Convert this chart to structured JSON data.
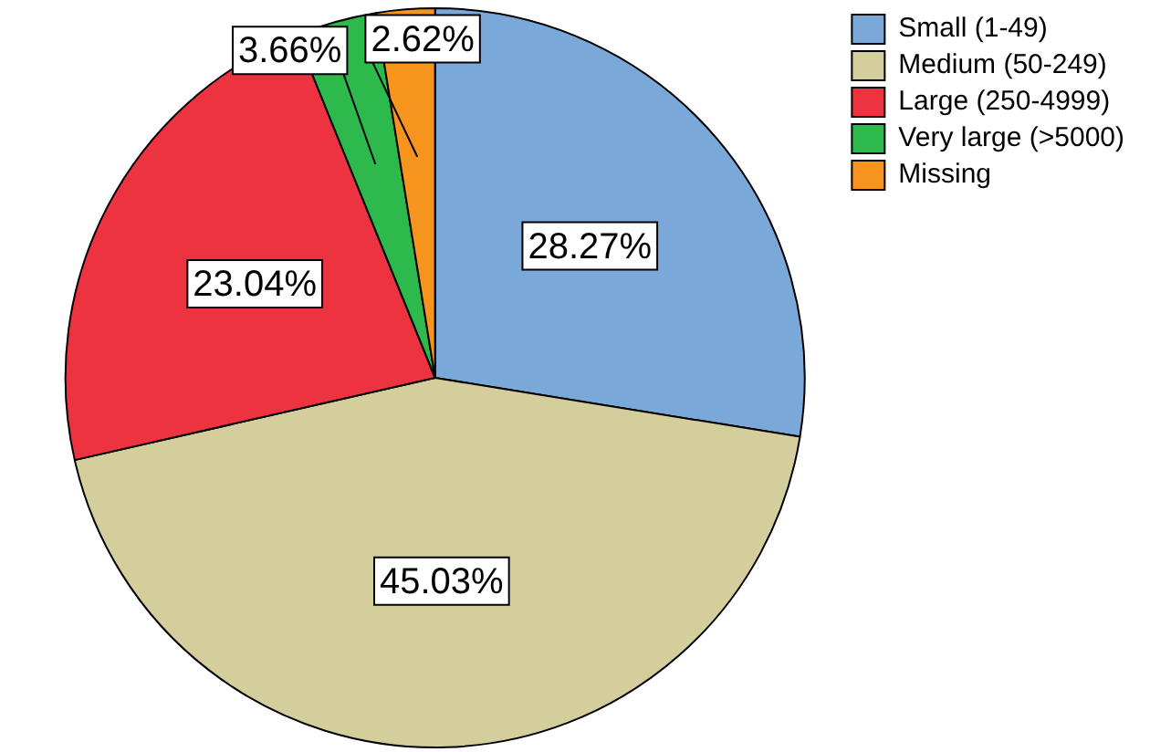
{
  "chart_data": {
    "type": "pie",
    "categories": [
      "Small (1-49)",
      "Medium (50-249)",
      "Large (250-4999)",
      "Very large (>5000)",
      "Missing"
    ],
    "values": [
      28.27,
      45.03,
      23.04,
      3.66,
      2.62
    ],
    "colors": [
      "#7aa8d8",
      "#d4cd9c",
      "#ee3340",
      "#2db94b",
      "#f7941e"
    ],
    "value_labels": [
      "28.27%",
      "45.03%",
      "23.04%",
      "3.66%",
      "2.62%"
    ],
    "legend": "top right"
  }
}
